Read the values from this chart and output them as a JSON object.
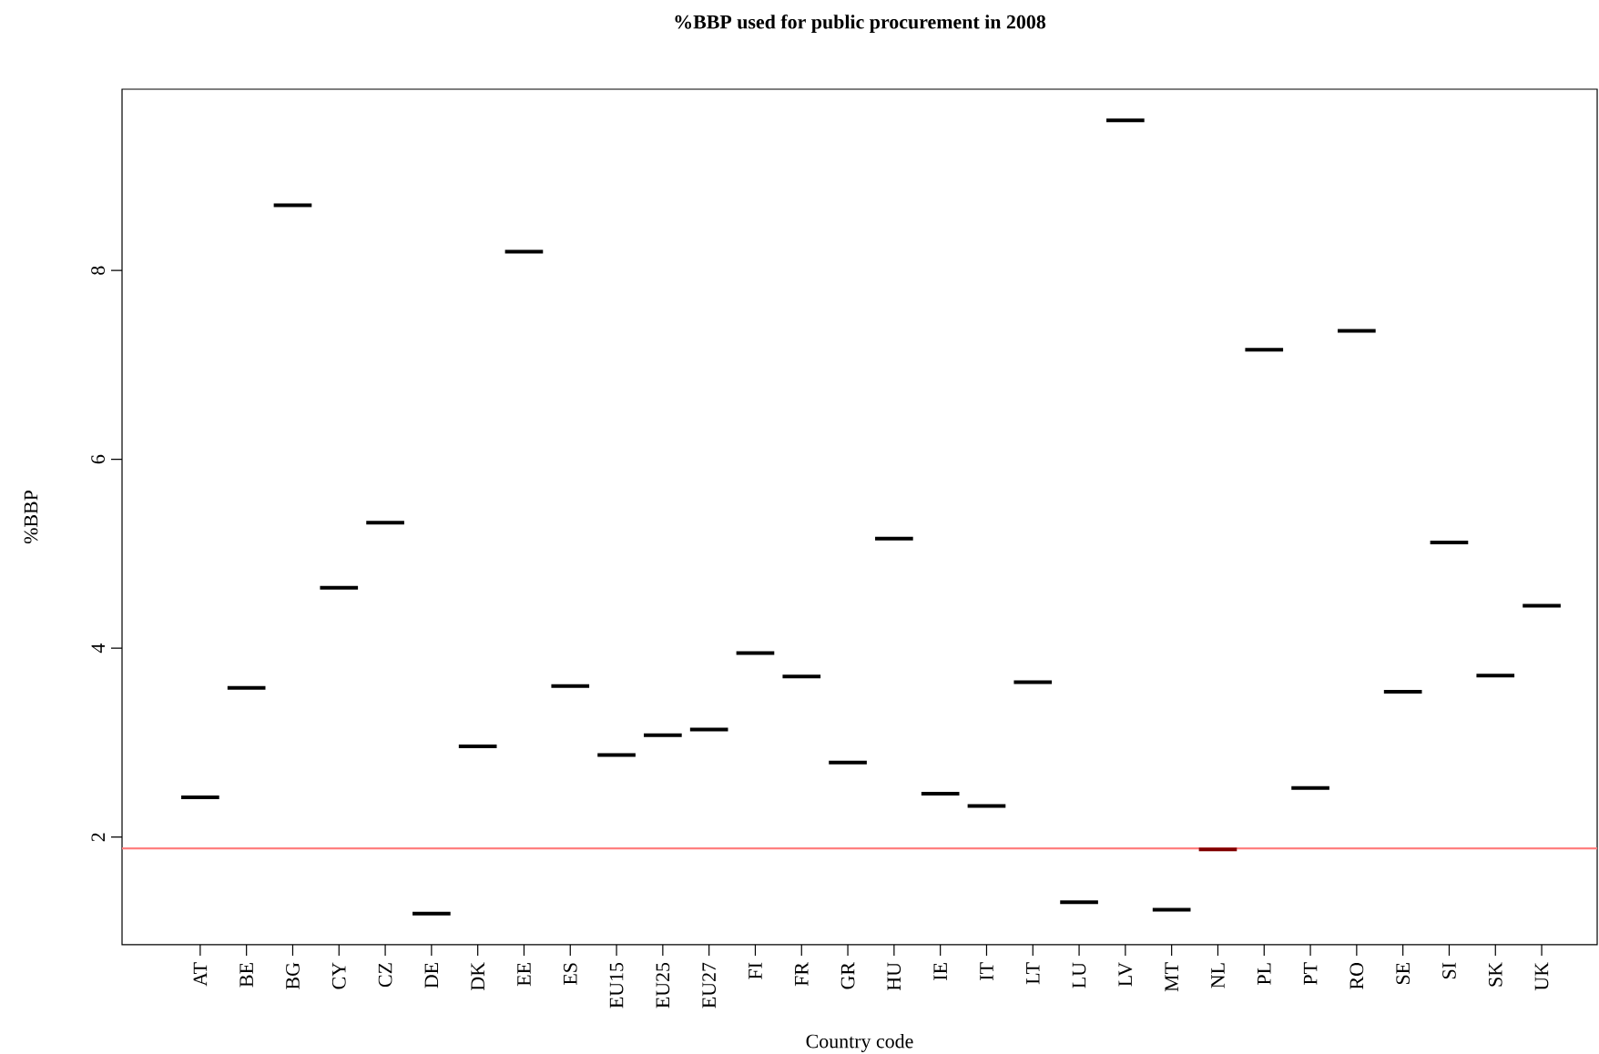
{
  "chart_data": {
    "type": "box",
    "title": "%BBP used for public procurement in 2008",
    "xlabel": "Country code",
    "ylabel": "%BBP",
    "categories": [
      "AT",
      "BE",
      "BG",
      "CY",
      "CZ",
      "DE",
      "DK",
      "EE",
      "ES",
      "EU15",
      "EU25",
      "EU27",
      "FI",
      "FR",
      "GR",
      "HU",
      "IE",
      "IT",
      "LT",
      "LU",
      "LV",
      "MT",
      "NL",
      "PL",
      "PT",
      "RO",
      "SE",
      "SI",
      "SK",
      "UK"
    ],
    "boxes": [
      {
        "low": 2.42,
        "q1": 2.42,
        "median": 2.42,
        "q3": 2.42,
        "high": 2.42
      },
      {
        "low": 3.58,
        "q1": 3.58,
        "median": 3.58,
        "q3": 3.58,
        "high": 3.58
      },
      {
        "low": 8.69,
        "q1": 8.69,
        "median": 8.69,
        "q3": 8.69,
        "high": 8.69
      },
      {
        "low": 4.64,
        "q1": 4.64,
        "median": 4.64,
        "q3": 4.64,
        "high": 4.64
      },
      {
        "low": 5.33,
        "q1": 5.33,
        "median": 5.33,
        "q3": 5.33,
        "high": 5.33
      },
      {
        "low": 1.19,
        "q1": 1.19,
        "median": 1.19,
        "q3": 1.19,
        "high": 1.19
      },
      {
        "low": 2.96,
        "q1": 2.96,
        "median": 2.96,
        "q3": 2.96,
        "high": 2.96
      },
      {
        "low": 8.2,
        "q1": 8.2,
        "median": 8.2,
        "q3": 8.2,
        "high": 8.2
      },
      {
        "low": 3.6,
        "q1": 3.6,
        "median": 3.6,
        "q3": 3.6,
        "high": 3.6
      },
      {
        "low": 2.87,
        "q1": 2.87,
        "median": 2.87,
        "q3": 2.87,
        "high": 2.87
      },
      {
        "low": 3.08,
        "q1": 3.08,
        "median": 3.08,
        "q3": 3.08,
        "high": 3.08
      },
      {
        "low": 3.14,
        "q1": 3.14,
        "median": 3.14,
        "q3": 3.14,
        "high": 3.14
      },
      {
        "low": 3.95,
        "q1": 3.95,
        "median": 3.95,
        "q3": 3.95,
        "high": 3.95
      },
      {
        "low": 3.7,
        "q1": 3.7,
        "median": 3.7,
        "q3": 3.7,
        "high": 3.7
      },
      {
        "low": 2.79,
        "q1": 2.79,
        "median": 2.79,
        "q3": 2.79,
        "high": 2.79
      },
      {
        "low": 5.16,
        "q1": 5.16,
        "median": 5.16,
        "q3": 5.16,
        "high": 5.16
      },
      {
        "low": 2.46,
        "q1": 2.46,
        "median": 2.46,
        "q3": 2.46,
        "high": 2.46
      },
      {
        "low": 2.33,
        "q1": 2.33,
        "median": 2.33,
        "q3": 2.33,
        "high": 2.33
      },
      {
        "low": 3.64,
        "q1": 3.64,
        "median": 3.64,
        "q3": 3.64,
        "high": 3.64
      },
      {
        "low": 1.31,
        "q1": 1.31,
        "median": 1.31,
        "q3": 1.31,
        "high": 1.31
      },
      {
        "low": 9.59,
        "q1": 9.59,
        "median": 9.59,
        "q3": 9.59,
        "high": 9.59
      },
      {
        "low": 1.23,
        "q1": 1.23,
        "median": 1.23,
        "q3": 1.23,
        "high": 1.23
      },
      {
        "low": 1.87,
        "q1": 1.87,
        "median": 1.87,
        "q3": 1.87,
        "high": 1.87
      },
      {
        "low": 7.16,
        "q1": 7.16,
        "median": 7.16,
        "q3": 7.16,
        "high": 7.16
      },
      {
        "low": 2.52,
        "q1": 2.52,
        "median": 2.52,
        "q3": 2.52,
        "high": 2.52
      },
      {
        "low": 7.36,
        "q1": 7.36,
        "median": 7.36,
        "q3": 7.36,
        "high": 7.36
      },
      {
        "low": 3.54,
        "q1": 3.54,
        "median": 3.54,
        "q3": 3.54,
        "high": 3.54
      },
      {
        "low": 5.12,
        "q1": 5.12,
        "median": 5.12,
        "q3": 5.12,
        "high": 5.12
      },
      {
        "low": 3.71,
        "q1": 3.71,
        "median": 3.71,
        "q3": 3.71,
        "high": 3.71
      },
      {
        "low": 4.45,
        "q1": 4.45,
        "median": 4.45,
        "q3": 4.45,
        "high": 4.45
      }
    ],
    "colors": [
      "#000000",
      "#000000",
      "#000000",
      "#000000",
      "#000000",
      "#000000",
      "#000000",
      "#000000",
      "#000000",
      "#000000",
      "#000000",
      "#000000",
      "#000000",
      "#000000",
      "#000000",
      "#000000",
      "#000000",
      "#000000",
      "#000000",
      "#000000",
      "#000000",
      "#000000",
      "#800000",
      "#000000",
      "#000000",
      "#000000",
      "#000000",
      "#000000",
      "#000000",
      "#000000"
    ],
    "ylim": [
      0.86,
      9.92
    ],
    "yticks": [
      2,
      4,
      6,
      8
    ],
    "ref_lines": [
      {
        "axis": "y",
        "value": 1.88,
        "color": "#ff7f7f"
      }
    ]
  }
}
